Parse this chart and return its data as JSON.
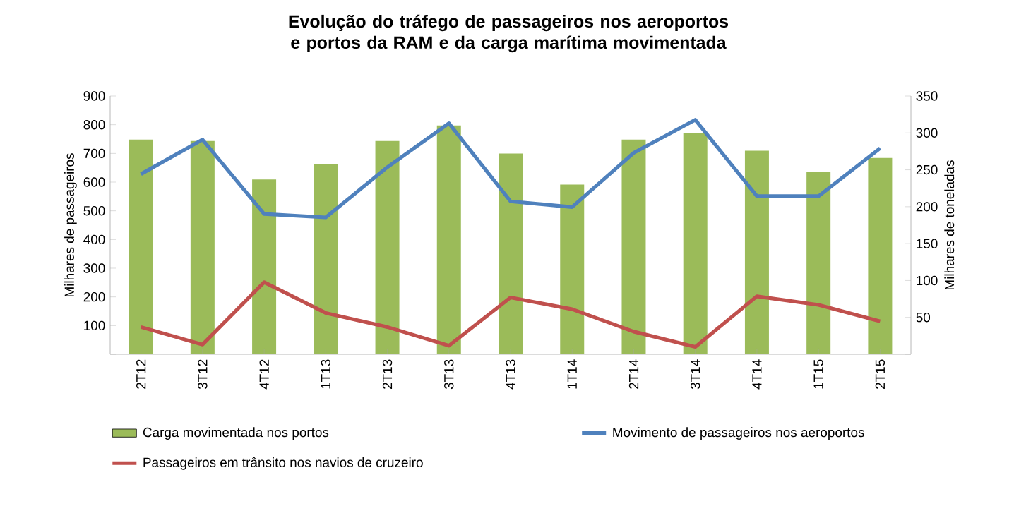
{
  "chart_data": {
    "type": "bar",
    "title": "Evolução do tráfego de passageiros nos aeroportos e portos da RAM e da carga marítima movimentada",
    "ylabel": "Milhares de passageiros",
    "y2label": "Milhares de toneladas",
    "categories": [
      "2T12",
      "3T12",
      "4T12",
      "1T13",
      "2T13",
      "3T13",
      "4T13",
      "1T14",
      "2T14",
      "3T14",
      "4T14",
      "1T15",
      "2T15"
    ],
    "series": [
      {
        "name": "Carga movimentada nos portos",
        "axis": "y2",
        "color": "#9bbb59",
        "values": [
          291,
          289,
          237,
          258,
          289,
          310,
          272,
          230,
          291,
          300,
          276,
          247,
          266
        ]
      },
      {
        "name": "Movimento de passageiros nos aeroportos",
        "type": "line",
        "axis": "y",
        "color": "#4f81bd",
        "values": [
          628,
          748,
          489,
          477,
          652,
          805,
          533,
          513,
          702,
          817,
          551,
          551,
          718
        ]
      },
      {
        "name": "Passageiros em trânsito nos navios de cruzeiro",
        "type": "line",
        "axis": "y",
        "color": "#c0504d",
        "values": [
          95,
          34,
          251,
          144,
          95,
          30,
          198,
          157,
          79,
          26,
          202,
          172,
          115
        ]
      }
    ],
    "ylim": [
      0,
      900
    ],
    "yticks": [
      {
        "value": 0,
        "label": null
      },
      100,
      200,
      300,
      400,
      500,
      600,
      700,
      800,
      900
    ],
    "y2lim": [
      0,
      350
    ],
    "y2ticks": [
      {
        "value": 0,
        "label": null
      },
      50,
      100,
      150,
      200,
      250,
      300,
      350
    ],
    "grid": false,
    "legend": "bottom",
    "marker": "none",
    "line_style": "solid"
  }
}
